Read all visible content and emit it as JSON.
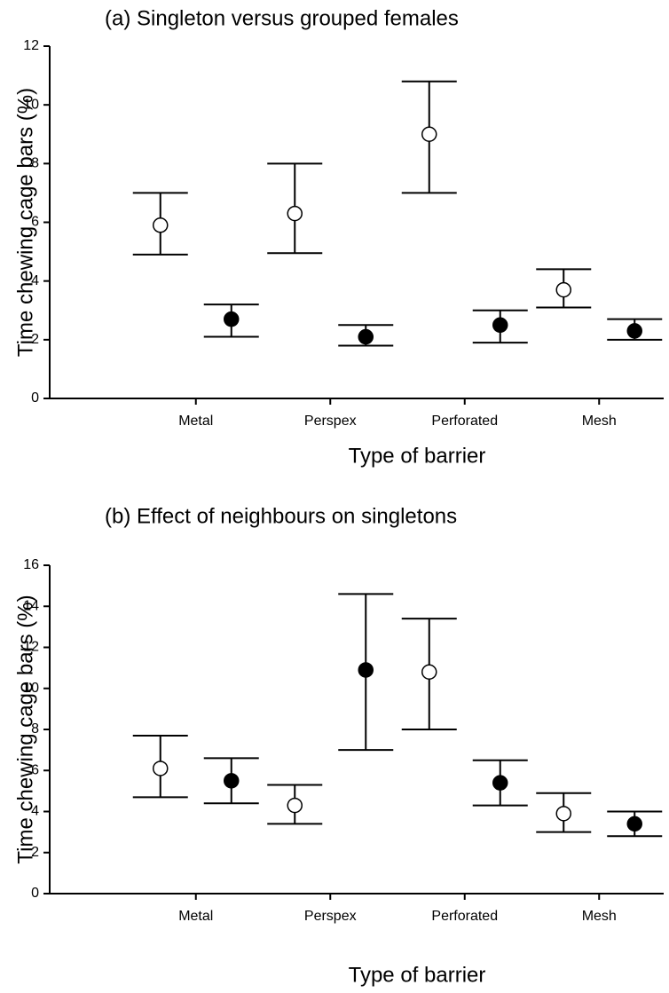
{
  "chart_data": [
    {
      "type": "errorbar",
      "title": "(a)  Singleton versus grouped females",
      "xlabel": "Type of barrier",
      "ylabel": "Time chewing cage bars (%)",
      "categories": [
        "Metal",
        "Perspex",
        "Perforated",
        "Mesh"
      ],
      "ylim": [
        0,
        12
      ],
      "yticks": [
        0,
        2,
        4,
        6,
        8,
        10,
        12
      ],
      "series": [
        {
          "color": "#ffffff",
          "values": [
            5.9,
            6.3,
            9.0,
            3.7
          ],
          "lower": [
            4.9,
            4.95,
            7.0,
            3.1
          ],
          "upper": [
            7.0,
            8.0,
            10.8,
            4.4
          ]
        },
        {
          "color": "#000000",
          "values": [
            2.7,
            2.1,
            2.5,
            2.3
          ],
          "lower": [
            2.1,
            1.8,
            1.9,
            2.0
          ],
          "upper": [
            3.2,
            2.5,
            3.0,
            2.7
          ]
        }
      ]
    },
    {
      "type": "errorbar",
      "title": "(b) Effect of neighbours on singletons",
      "xlabel": "Type of barrier",
      "ylabel": "Time chewing cage bars (%)",
      "categories": [
        "Metal",
        "Perspex",
        "Perforated",
        "Mesh"
      ],
      "ylim": [
        0,
        16
      ],
      "yticks": [
        0,
        2,
        4,
        6,
        8,
        10,
        12,
        14,
        16
      ],
      "series": [
        {
          "color": "#ffffff",
          "values": [
            6.1,
            4.3,
            10.8,
            3.9
          ],
          "lower": [
            4.7,
            3.4,
            8.0,
            3.0
          ],
          "upper": [
            7.7,
            5.3,
            13.4,
            4.9
          ]
        },
        {
          "color": "#000000",
          "values": [
            5.5,
            10.9,
            5.4,
            3.4
          ],
          "lower": [
            4.4,
            7.0,
            4.3,
            2.8
          ],
          "upper": [
            6.6,
            14.6,
            6.5,
            4.0
          ]
        }
      ]
    }
  ]
}
